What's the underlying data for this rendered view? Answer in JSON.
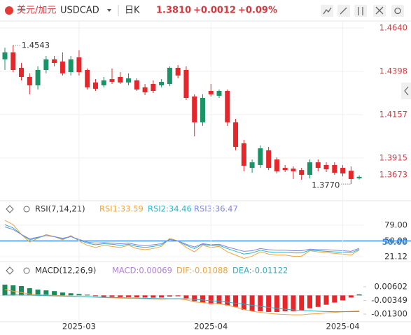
{
  "header": {
    "title": "美元/加元",
    "symbol": "USDCAD",
    "period": "日K",
    "price": "1.3810",
    "change": "+0.0012",
    "change_pct": "+0.09%"
  },
  "chart_data": [
    {
      "type": "candlestick",
      "up_color": "#1a9466",
      "down_color": "#e5262b",
      "open": [
        1.4465,
        1.4504,
        1.4418,
        1.4367,
        1.432,
        1.4406,
        1.4465,
        1.4453,
        1.4394,
        1.4476,
        1.4406,
        1.4336,
        1.432,
        1.4355,
        1.4367,
        1.4336,
        1.4348,
        1.4309,
        1.4328,
        1.432,
        1.4328,
        1.4418,
        1.4406,
        1.4258,
        1.4114,
        1.4289,
        1.4262,
        1.4289,
        1.4114,
        1.3997,
        1.386,
        1.3876,
        1.3958,
        1.3907,
        1.386,
        1.3856,
        1.3848,
        1.3821,
        1.3891,
        1.3876,
        1.3876,
        1.386,
        1.3844,
        1.3802
      ],
      "high": [
        1.453,
        1.4543,
        1.4445,
        1.4387,
        1.4426,
        1.4484,
        1.4484,
        1.4504,
        1.4484,
        1.4515,
        1.4414,
        1.4355,
        1.4367,
        1.4414,
        1.4394,
        1.4387,
        1.4359,
        1.4328,
        1.4348,
        1.4355,
        1.4426,
        1.4433,
        1.4426,
        1.427,
        1.427,
        1.4328,
        1.4297,
        1.4297,
        1.4133,
        1.4016,
        1.3907,
        1.3985,
        1.3977,
        1.3919,
        1.3876,
        1.3868,
        1.386,
        1.3907,
        1.3907,
        1.3891,
        1.3891,
        1.3876,
        1.3868,
        1.3818
      ],
      "low": [
        1.4406,
        1.4394,
        1.4348,
        1.427,
        1.4297,
        1.4387,
        1.4426,
        1.4375,
        1.4375,
        1.4375,
        1.4297,
        1.4289,
        1.4309,
        1.4328,
        1.4328,
        1.432,
        1.4289,
        1.4266,
        1.4277,
        1.4309,
        1.4316,
        1.4359,
        1.4238,
        1.4036,
        1.4094,
        1.4258,
        1.425,
        1.4094,
        1.3958,
        1.3841,
        1.3833,
        1.386,
        1.3848,
        1.3829,
        1.3837,
        1.3798,
        1.3794,
        1.3802,
        1.3841,
        1.3837,
        1.3821,
        1.3813,
        1.377,
        1.3795
      ],
      "close": [
        1.4504,
        1.4406,
        1.4367,
        1.432,
        1.4406,
        1.4465,
        1.4445,
        1.4387,
        1.4465,
        1.4394,
        1.4309,
        1.4301,
        1.4348,
        1.434,
        1.4336,
        1.4359,
        1.4297,
        1.4281,
        1.4289,
        1.434,
        1.4418,
        1.4375,
        1.425,
        1.4114,
        1.425,
        1.427,
        1.4289,
        1.4114,
        1.3977,
        1.3872,
        1.3891,
        1.3969,
        1.386,
        1.3841,
        1.3848,
        1.3841,
        1.3821,
        1.3891,
        1.386,
        1.3852,
        1.3833,
        1.3829,
        1.3798,
        1.381
      ],
      "ylim": [
        1.3673,
        1.464
      ],
      "yticks": [
        {
          "value": 1.464,
          "label": "1.4640"
        },
        {
          "value": 1.4398,
          "label": "1.4398"
        },
        {
          "value": 1.4157,
          "label": "1.4157"
        },
        {
          "value": 1.3915,
          "label": "1.3915"
        },
        {
          "value": 1.3673,
          "label": "1.3673"
        }
      ],
      "tick_color": "#d9363e",
      "grid": true,
      "annotations": [
        {
          "kind": "high",
          "value": 1.4543,
          "label": "1.4543"
        },
        {
          "kind": "low",
          "value": 1.377,
          "label": "1.3770"
        }
      ]
    },
    {
      "type": "line",
      "title": "RSI(7,14,21)",
      "series": [
        {
          "name": "RSI1:33.59",
          "color": "#f2a33a",
          "values": [
            88,
            80,
            62,
            48,
            55,
            62,
            58,
            52,
            60,
            50,
            42,
            38,
            42,
            40,
            38,
            42,
            36,
            34,
            36,
            40,
            55,
            50,
            38,
            30,
            42,
            38,
            40,
            30,
            24,
            18,
            22,
            30,
            26,
            24,
            24,
            22,
            22,
            32,
            30,
            29,
            27,
            26,
            24,
            33.59
          ]
        },
        {
          "name": "RSI2:34.46",
          "color": "#2fb4c9",
          "values": [
            80,
            74,
            62,
            52,
            56,
            60,
            58,
            54,
            58,
            52,
            46,
            43,
            45,
            44,
            42,
            44,
            40,
            38,
            40,
            43,
            53,
            50,
            42,
            36,
            44,
            41,
            42,
            36,
            31,
            26,
            28,
            33,
            30,
            29,
            29,
            28,
            28,
            33,
            32,
            31,
            30,
            29,
            28,
            34.46
          ]
        },
        {
          "name": "RSI3:36.47",
          "color": "#7d86e0",
          "values": [
            76,
            71,
            62,
            54,
            57,
            60,
            58,
            55,
            58,
            53,
            48,
            46,
            47,
            46,
            45,
            46,
            43,
            41,
            43,
            45,
            53,
            50,
            44,
            39,
            45,
            43,
            44,
            39,
            35,
            31,
            32,
            36,
            34,
            33,
            33,
            32,
            32,
            35,
            34,
            34,
            33,
            32,
            31,
            36.47
          ]
        }
      ],
      "ylim": [
        14.7,
        117.6
      ],
      "yticks": [
        {
          "value": 79,
          "label": "79.00"
        },
        {
          "value": 50,
          "label": "50.00"
        },
        {
          "value": 21.12,
          "label": "21.12"
        }
      ],
      "reference": {
        "value": 50,
        "label": "50.00",
        "color": "#3d8fe3"
      },
      "grid": true
    },
    {
      "type": "combo",
      "title": "MACD(12,26,9)",
      "categories": [
        null,
        null,
        null,
        null,
        null,
        null,
        null,
        null,
        null,
        "2025-03",
        null,
        null,
        null,
        null,
        null,
        null,
        null,
        null,
        null,
        null,
        null,
        null,
        null,
        null,
        null,
        "2025-04",
        null,
        null,
        null,
        null,
        null,
        null,
        null,
        null,
        null,
        null,
        null,
        null,
        null,
        null,
        null,
        "2025-04",
        null,
        null
      ],
      "series": [
        {
          "name": "MACD:0.00069",
          "color": "#b27fe0",
          "kind": "bar",
          "up_color": "#1a8a5a",
          "down_color": "#e5262b",
          "values": [
            0.0075,
            0.007,
            0.0065,
            0.005,
            0.004,
            0.0035,
            0.003,
            0.002,
            0.0015,
            0.001,
            0.0005,
            -0.0005,
            -0.001,
            -0.001,
            -0.0012,
            -0.0012,
            -0.0013,
            -0.0015,
            -0.0016,
            -0.0015,
            -0.0008,
            -0.0006,
            -0.002,
            -0.004,
            -0.005,
            -0.006,
            -0.006,
            -0.007,
            -0.008,
            -0.01,
            -0.011,
            -0.011,
            -0.0115,
            -0.0115,
            -0.011,
            -0.011,
            -0.0105,
            -0.009,
            -0.008,
            -0.0065,
            -0.005,
            -0.0035,
            -0.0015,
            0.00069
          ]
        },
        {
          "name": "DIF:-0.01088",
          "color": "#f2a33a",
          "kind": "line",
          "values": [
            0.004,
            0.003,
            0.002,
            0.001,
            0.0005,
            0.0003,
            0,
            -0.0003,
            -0.0005,
            -0.0008,
            -0.001,
            -0.0013,
            -0.0015,
            -0.0017,
            -0.0019,
            -0.002,
            -0.0022,
            -0.0024,
            -0.0026,
            -0.0027,
            -0.0025,
            -0.0024,
            -0.003,
            -0.0045,
            -0.005,
            -0.0055,
            -0.0058,
            -0.0068,
            -0.0082,
            -0.0098,
            -0.011,
            -0.0118,
            -0.0125,
            -0.013,
            -0.0133,
            -0.0135,
            -0.0135,
            -0.013,
            -0.0127,
            -0.0122,
            -0.0118,
            -0.0114,
            -0.0111,
            -0.01088
          ]
        },
        {
          "name": "DEA:-0.01122",
          "color": "#38adc0",
          "kind": "line",
          "values": [
            0.0002,
            0.0003,
            0.0003,
            0.0002,
            0,
            -0.0002,
            -0.0004,
            -0.0005,
            -0.0007,
            -0.0008,
            -0.001,
            -0.0011,
            -0.0013,
            -0.0014,
            -0.0016,
            -0.0017,
            -0.0018,
            -0.002,
            -0.0021,
            -0.0022,
            -0.0023,
            -0.0023,
            -0.0024,
            -0.0028,
            -0.0032,
            -0.0037,
            -0.0041,
            -0.0047,
            -0.0054,
            -0.0061,
            -0.0069,
            -0.0076,
            -0.0083,
            -0.009,
            -0.0096,
            -0.0101,
            -0.0105,
            -0.0108,
            -0.011,
            -0.0112,
            -0.0113,
            -0.0113,
            -0.0113,
            -0.01122
          ]
        }
      ],
      "ylim": [
        -0.0193,
        0.0216
      ],
      "yticks": [
        0.00602,
        -0.00349,
        {
          "value": -0.013,
          "label": "-0.01300"
        }
      ],
      "grid": true
    }
  ]
}
